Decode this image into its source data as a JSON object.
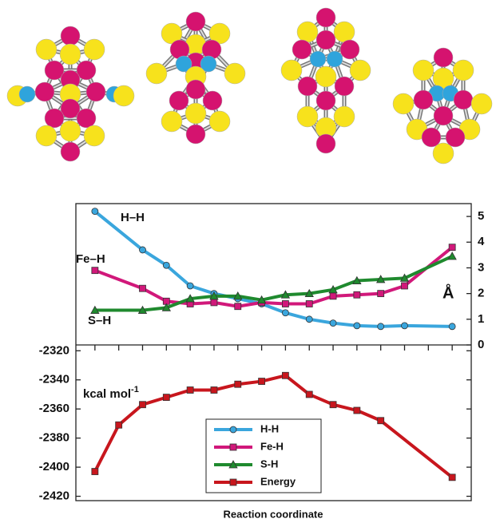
{
  "chart_data": [
    {
      "type": "line",
      "x": [
        0,
        2,
        3,
        4,
        5,
        6,
        7,
        8,
        9,
        10,
        11,
        12,
        13,
        15
      ],
      "xlim": [
        -0.8,
        15.8
      ],
      "series": [
        {
          "name": "H-H",
          "color": "#3aa6dd",
          "marker": "circle",
          "axis": "y2",
          "values": [
            5.2,
            3.7,
            3.1,
            2.3,
            2.0,
            1.8,
            1.6,
            1.25,
            1.0,
            0.85,
            0.75,
            0.72,
            0.75,
            0.72
          ]
        },
        {
          "name": "Fe-H",
          "color": "#d1187a",
          "marker": "square",
          "axis": "y2",
          "values": [
            2.9,
            2.2,
            1.7,
            1.6,
            1.65,
            1.5,
            1.65,
            1.6,
            1.6,
            1.9,
            1.95,
            2.0,
            2.3,
            3.8
          ]
        },
        {
          "name": "S-H",
          "color": "#1f8a2e",
          "marker": "triangle",
          "axis": "y2",
          "values": [
            1.35,
            1.35,
            1.45,
            1.8,
            1.9,
            1.9,
            1.75,
            1.95,
            2.0,
            2.15,
            2.5,
            2.55,
            2.6,
            3.45
          ]
        }
      ],
      "y2lim": [
        0,
        5.5
      ],
      "y2ticks": [
        0,
        1,
        2,
        3,
        4,
        5
      ],
      "y2label": "Å",
      "annotations": [
        "H–H",
        "Fe–H",
        "S–H"
      ]
    },
    {
      "type": "line",
      "x": [
        0,
        1,
        2,
        3,
        4,
        5,
        6,
        7,
        8,
        9,
        10,
        11,
        12,
        15
      ],
      "xlim": [
        -0.8,
        15.8
      ],
      "xticks": [
        0,
        1,
        2,
        3,
        4,
        5,
        6,
        7,
        8,
        9,
        10,
        11,
        12,
        13,
        14,
        15
      ],
      "xlabel": "Reaction coordinate",
      "series": [
        {
          "name": "Energy",
          "color": "#c8161d",
          "marker": "square",
          "values": [
            -2403,
            -2371,
            -2357,
            -2352,
            -2347,
            -2347,
            -2343,
            -2341,
            -2337,
            -2350,
            -2357,
            -2361,
            -2368,
            -2407
          ]
        }
      ],
      "ylim": [
        -2423,
        -2316
      ],
      "yticks": [
        -2320,
        -2340,
        -2360,
        -2380,
        -2400,
        -2420
      ],
      "ylabel": {
        "text": "kcal mol",
        "superscript": "-1"
      },
      "legend": "lower center"
    }
  ]
}
